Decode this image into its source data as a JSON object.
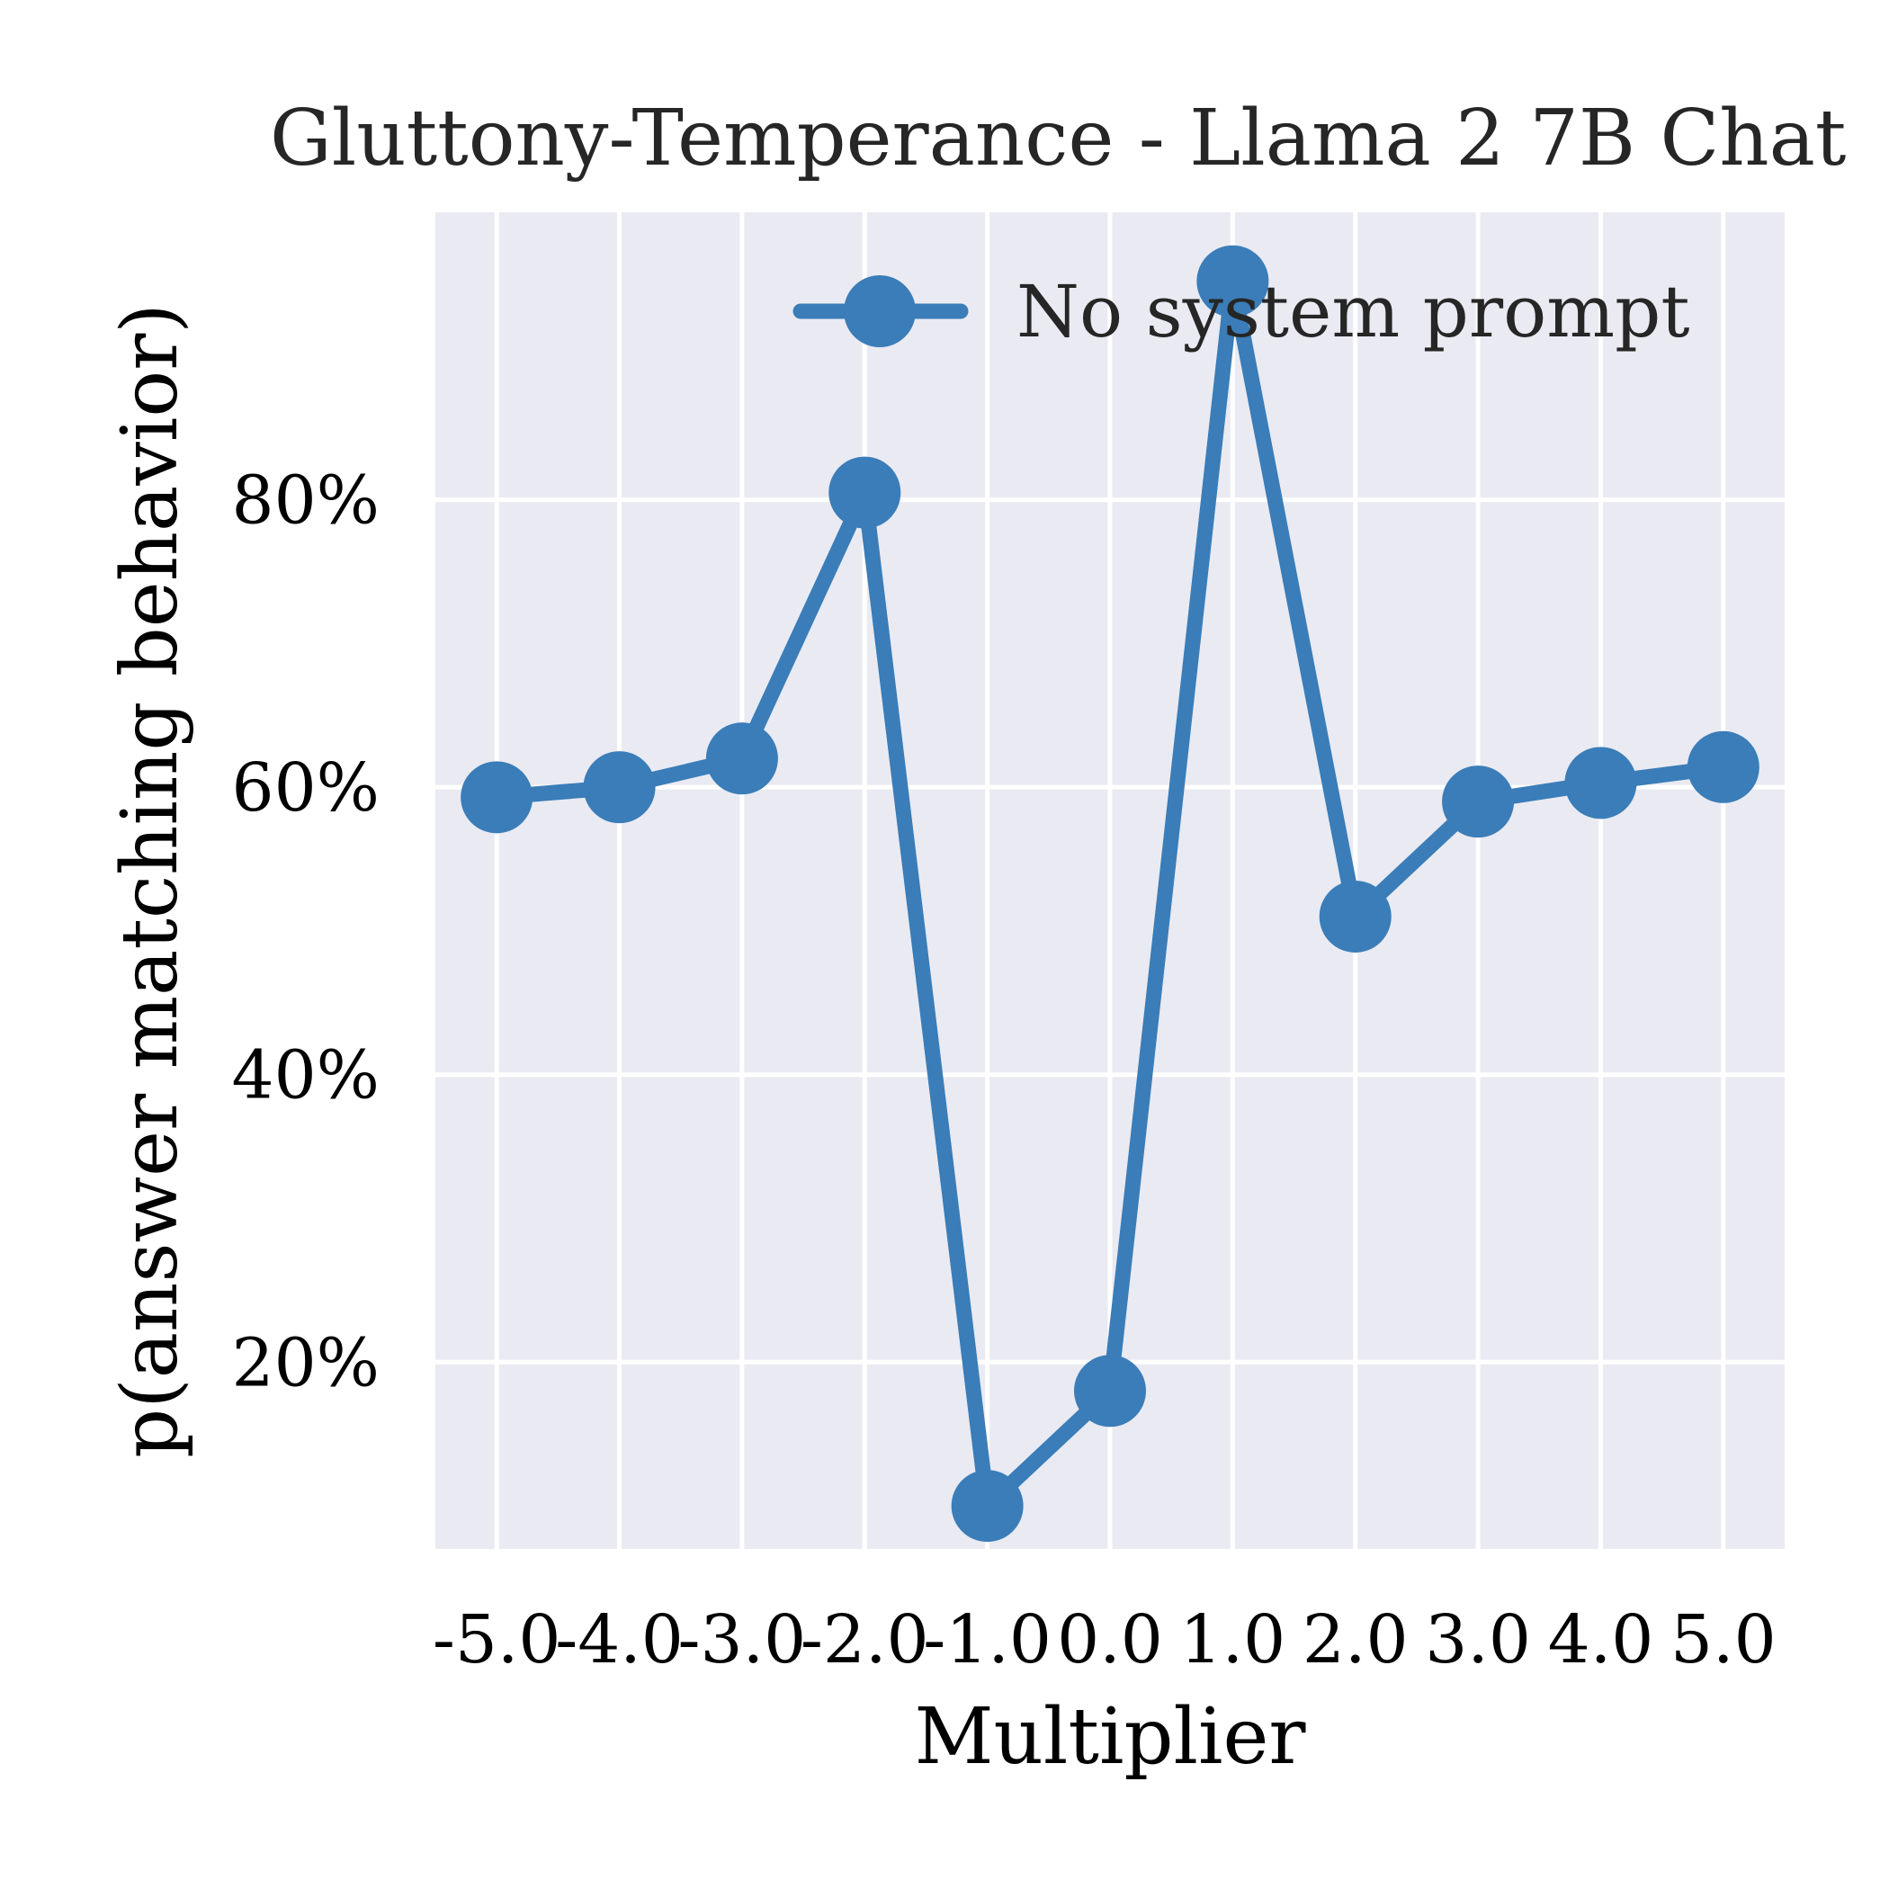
{
  "chart_data": {
    "type": "line",
    "title": "Gluttony-Temperance - Llama 2 7B Chat",
    "xlabel": "Multiplier",
    "ylabel": "p(answer matching behavior)",
    "x": [
      -5.0,
      -4.0,
      -3.0,
      -2.0,
      -1.0,
      0.0,
      1.0,
      2.0,
      3.0,
      4.0,
      5.0
    ],
    "x_tick_labels": [
      "-5.0",
      "-4.0",
      "-3.0",
      "-2.0",
      "-1.0",
      "0.0",
      "1.0",
      "2.0",
      "3.0",
      "4.0",
      "5.0"
    ],
    "y_ticks": [
      0.2,
      0.4,
      0.6,
      0.8
    ],
    "y_tick_labels": [
      "20%",
      "40%",
      "60%",
      "80%"
    ],
    "xlim": [
      -5.5,
      5.5
    ],
    "ylim": [
      0.07,
      1.0
    ],
    "grid": true,
    "legend_position": "top-right",
    "series": [
      {
        "name": "No system prompt",
        "color": "#3a7db8",
        "values": [
          0.593,
          0.6,
          0.62,
          0.805,
          0.1,
          0.18,
          0.952,
          0.51,
          0.59,
          0.603,
          0.614
        ]
      }
    ]
  }
}
